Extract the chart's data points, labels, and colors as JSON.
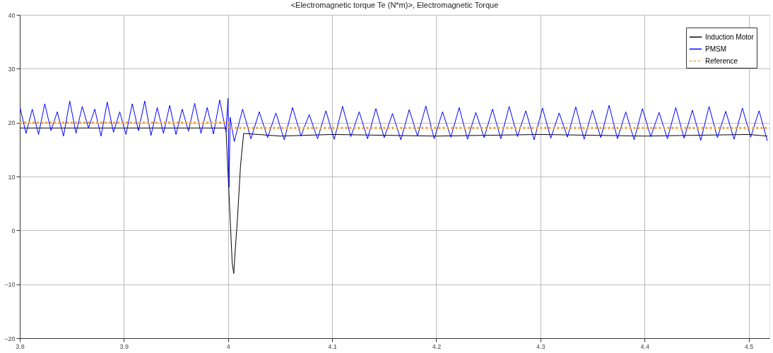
{
  "chart_data": {
    "type": "line",
    "title": "<Electromagnetic torque Te (N*m)>, Electromagnetic Torque",
    "xlim": [
      3.8,
      4.52
    ],
    "xticks": [
      3.8,
      3.9,
      {
        "value": 4,
        "label": "4"
      },
      4.1,
      4.2,
      4.3,
      4.4,
      4.5
    ],
    "ylim": [
      -20,
      40
    ],
    "yticks": [
      -20,
      -10,
      0,
      10,
      20,
      30,
      40
    ],
    "grid": true,
    "legend": "top right",
    "marker": "none",
    "series": [
      {
        "name": "Induction Motor",
        "color": "#000000",
        "line_style": "solid",
        "x": [
          3.8,
          3.9,
          3.998,
          4.004,
          4.0055,
          4.007,
          4.009,
          4.012,
          4.015,
          4.05,
          4.1,
          4.2,
          4.3,
          4.4,
          4.5,
          4.518
        ],
        "values": [
          19,
          19,
          19,
          -6,
          -8,
          -3.5,
          2,
          12,
          18,
          17.5,
          17.8,
          17.5,
          17.8,
          17.5,
          17.8,
          17.5
        ]
      },
      {
        "name": "PMSM",
        "color": "#0000ff",
        "line_style": "solid",
        "x": [
          3.8,
          3.806,
          3.812,
          3.818,
          3.824,
          3.83,
          3.836,
          3.842,
          3.848,
          3.854,
          3.86,
          3.866,
          3.872,
          3.878,
          3.884,
          3.89,
          3.896,
          3.902,
          3.908,
          3.914,
          3.92,
          3.926,
          3.932,
          3.938,
          3.944,
          3.95,
          3.956,
          3.962,
          3.968,
          3.974,
          3.98,
          3.986,
          3.992,
          3.998,
          4.0,
          4.001,
          4.002,
          4.006,
          4.014,
          4.022,
          4.03,
          4.038,
          4.046,
          4.054,
          4.062,
          4.07,
          4.078,
          4.086,
          4.094,
          4.102,
          4.11,
          4.118,
          4.126,
          4.134,
          4.142,
          4.15,
          4.158,
          4.166,
          4.174,
          4.182,
          4.19,
          4.198,
          4.206,
          4.214,
          4.222,
          4.23,
          4.238,
          4.246,
          4.254,
          4.262,
          4.27,
          4.278,
          4.286,
          4.294,
          4.302,
          4.31,
          4.318,
          4.326,
          4.334,
          4.342,
          4.35,
          4.358,
          4.366,
          4.374,
          4.382,
          4.39,
          4.398,
          4.406,
          4.414,
          4.422,
          4.43,
          4.438,
          4.446,
          4.454,
          4.462,
          4.47,
          4.478,
          4.486,
          4.494,
          4.502,
          4.51,
          4.518
        ],
        "values": [
          23,
          18,
          22.5,
          17.8,
          23.5,
          18.5,
          22,
          17.5,
          24,
          18,
          23,
          19,
          22.5,
          17.5,
          23.8,
          18.2,
          22,
          17.8,
          23.5,
          18.5,
          24,
          17.6,
          22.8,
          18,
          23.2,
          17.8,
          22.5,
          18.4,
          23.6,
          18,
          22.8,
          17.9,
          24.2,
          18.3,
          24.5,
          8,
          21,
          16.5,
          22.5,
          17,
          22,
          17.2,
          21.8,
          16.8,
          22.8,
          17.5,
          21.5,
          17,
          22.2,
          16.9,
          23,
          17.4,
          22,
          17,
          22.6,
          17.2,
          21.7,
          16.8,
          22.4,
          17.5,
          23.1,
          17,
          22,
          17.3,
          22.8,
          16.9,
          21.9,
          17.2,
          22.5,
          17,
          23,
          17.4,
          22.2,
          16.8,
          22.7,
          17.1,
          21.8,
          17.3,
          22.9,
          16.9,
          22.3,
          17.2,
          23.2,
          17,
          22,
          16.8,
          22.6,
          17.4,
          21.9,
          17,
          22.8,
          17.1,
          22.3,
          16.7,
          23,
          17.2,
          22.1,
          16.9,
          22.7,
          17.3,
          22.2,
          16.6
        ]
      },
      {
        "name": "Reference",
        "color": "#f0a030",
        "line_style": "dotted",
        "x": [
          3.8,
          4.0,
          4.0,
          4.52
        ],
        "values": [
          20,
          20,
          19,
          19
        ]
      }
    ]
  }
}
